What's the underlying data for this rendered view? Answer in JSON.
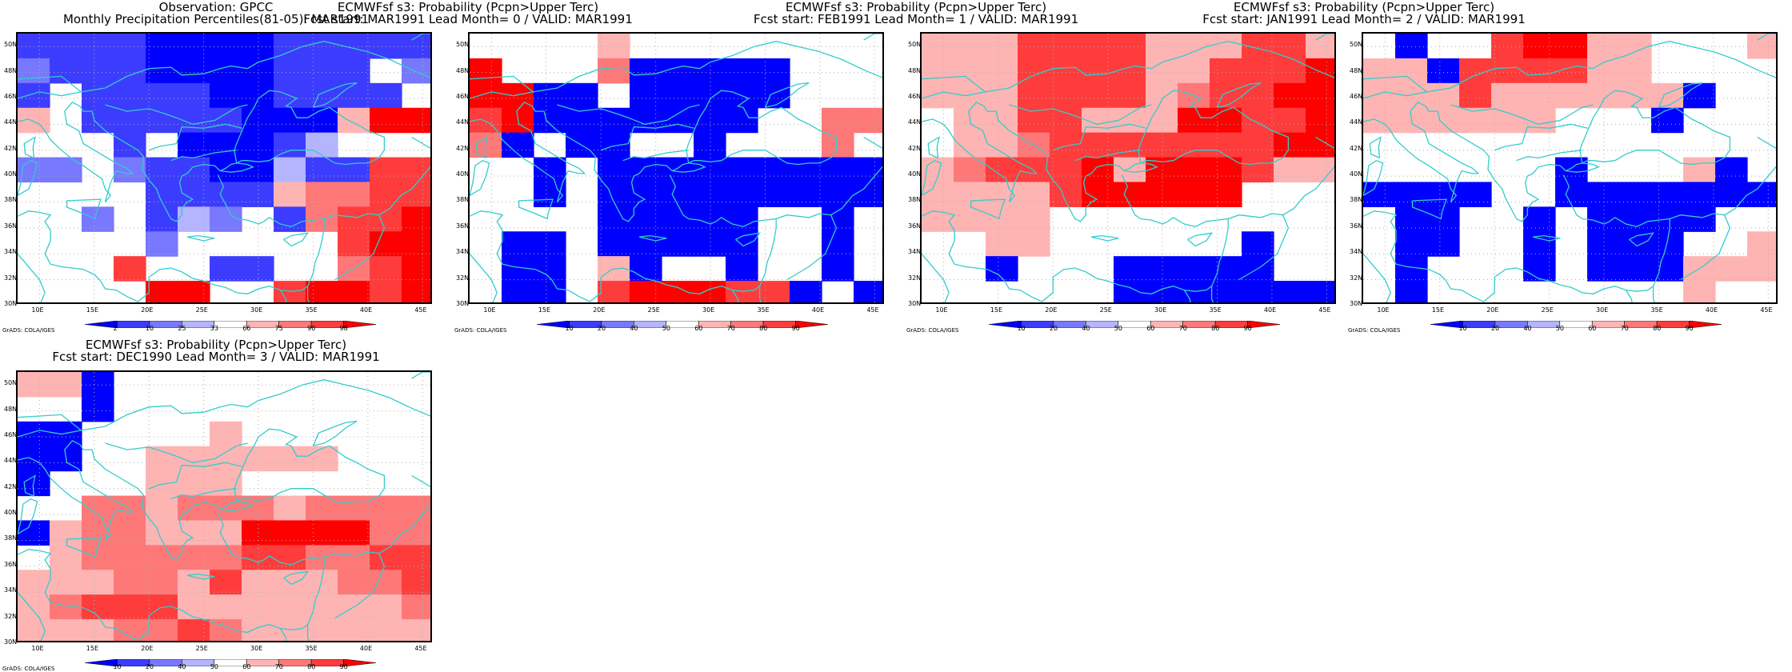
{
  "colors": {
    "scale": [
      "#0000ff",
      "#3c3cff",
      "#7878ff",
      "#b4b4ff",
      "#ffffff",
      "#ffb4b4",
      "#ff7878",
      "#ff3c3c",
      "#ff0000"
    ],
    "coast": "#33cccc",
    "grid": "#b0b0b0"
  },
  "axes": {
    "x_ticks": [
      "10E",
      "15E",
      "20E",
      "25E",
      "30E",
      "35E",
      "40E",
      "45E"
    ],
    "y_ticks": [
      "50N",
      "48N",
      "46N",
      "44N",
      "42N",
      "40N",
      "38N",
      "36N",
      "34N",
      "32N",
      "30N"
    ]
  },
  "credit": "GrADS: COLA/IGES",
  "panels": [
    {
      "title1": "Observation: GPCC",
      "title2": "Monthly Precipitation Percentiles(81-05): MAR1991",
      "colorbar_labels": [
        "2",
        "10",
        "25",
        "33",
        "66",
        "75",
        "90",
        "98"
      ],
      "grid": [
        "1111000011111",
        "2111000011142",
        "1411110011114",
        "5411111000588",
        "4441400013444",
        "2242110031177",
        "4444111156677",
        "4424132416778",
        "4444244444788",
        "4447441144678",
        "4444884478878"
      ]
    },
    {
      "title1": "ECMWFsf s3: Probability (Pcpn>Upper Terc)",
      "title2": "Fcst start: MAR1991   Lead Month= 0 / VALID: MAR1991",
      "colorbar_labels": [
        "10",
        "20",
        "40",
        "50",
        "60",
        "70",
        "80",
        "90"
      ],
      "grid": [
        "4444544444444",
        "8444600000444",
        "8800400000444",
        "7800000004466",
        "6040044044464",
        "4404000000000",
        "4404000000000",
        "4444000004404",
        "4004000004404",
        "4004504404404",
        "4004788877040"
      ]
    },
    {
      "title1": "ECMWFsf s3: Probability (Pcpn>Upper Terc)",
      "title2": "Fcst start: FEB1991   Lead Month= 1 / VALID: MAR1991",
      "colorbar_labels": [
        "10",
        "20",
        "40",
        "50",
        "60",
        "70",
        "80",
        "90"
      ],
      "grid": [
        "5557777555775",
        "5557777557778",
        "5557777567788",
        "4557755588778",
        "4556777777788",
        "5677785888755",
        "5555788888444",
        "5555444444444",
        "4455444444044",
        "4404440000044",
        "4444440000000"
      ]
    },
    {
      "title1": "ECMWFsf s3: Probability (Pcpn>Upper Terc)",
      "title2": "Fcst start: JAN1991   Lead Month= 2 / VALID: MAR1991",
      "colorbar_labels": [
        "10",
        "20",
        "40",
        "50",
        "60",
        "70",
        "80",
        "90"
      ],
      "grid": [
        "4044788554445",
        "5507777554444",
        "5557555555044",
        "5555554440444",
        "4444444444444",
        "4444440444504",
        "0000440000000",
        "4004404000044",
        "4004404000445",
        "4044404000555",
        "4044444444544"
      ]
    },
    {
      "title1": "ECMWFsf s3: Probability (Pcpn>Upper Terc)",
      "title2": "Fcst start: DEC1990   Lead Month= 3 / VALID: MAR1991",
      "colorbar_labels": [
        "10",
        "20",
        "40",
        "50",
        "60",
        "70",
        "80",
        "90"
      ],
      "grid": [
        "5504444444444",
        "4404444444444",
        "0044445444444",
        "0044555555444",
        "0444555444444",
        "4466566656666",
        "0566555888866",
        "4566666776677",
        "5556657555667",
        "5677755555556",
        "5556676555555"
      ]
    }
  ]
}
